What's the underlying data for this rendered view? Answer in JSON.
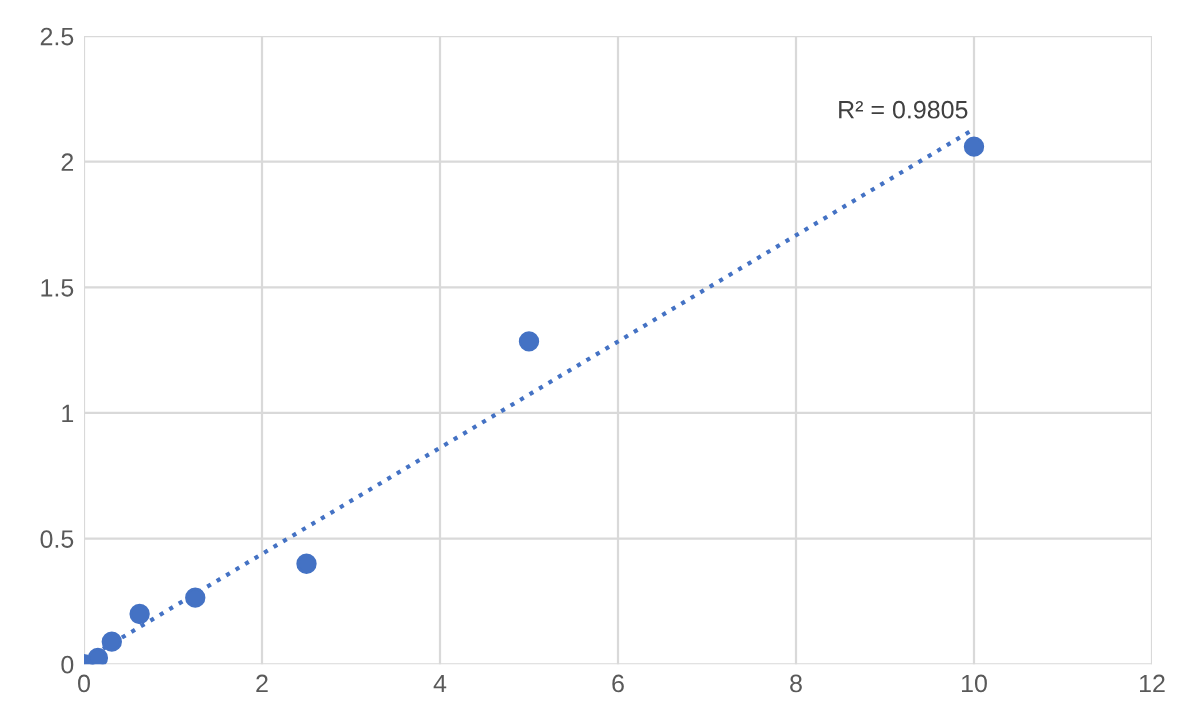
{
  "chart_data": {
    "type": "scatter",
    "xlim": [
      0,
      12
    ],
    "ylim": [
      0,
      2.5
    ],
    "xticks": [
      0,
      2,
      4,
      6,
      8,
      10,
      12
    ],
    "yticks": [
      0,
      0.5,
      1,
      1.5,
      2,
      2.5
    ],
    "grid": true,
    "marker": "circle",
    "series": [
      {
        "color": "#4472c4",
        "x": [
          0,
          0.156,
          0.3125,
          0.625,
          1.25,
          2.5,
          5,
          10
        ],
        "values": [
          0,
          0.025,
          0.09,
          0.2,
          0.265,
          0.4,
          1.285,
          2.06
        ]
      },
      {
        "type": "line",
        "color": "#4472c4",
        "line_style": "dotted",
        "marker": "none",
        "x": [
          0,
          10
        ],
        "values": [
          0.016,
          2.13
        ]
      }
    ],
    "annotations": [
      {
        "text": "R² = 0.9805",
        "x": 10,
        "y": 2.13
      }
    ]
  }
}
